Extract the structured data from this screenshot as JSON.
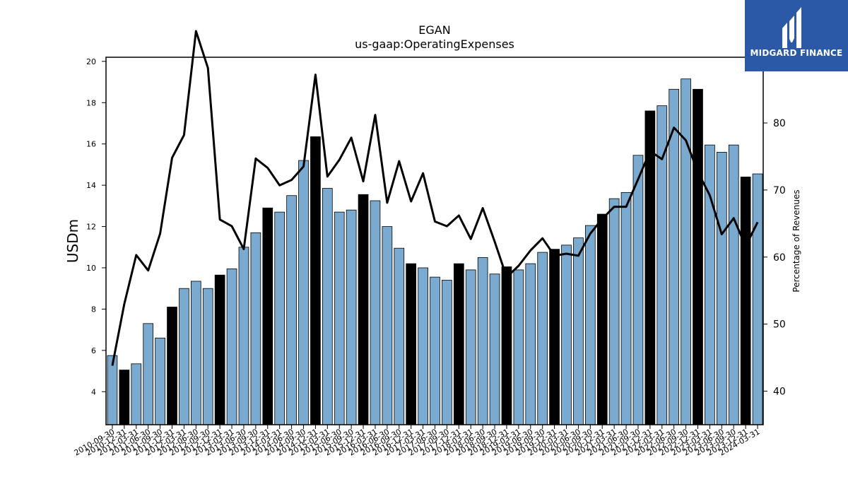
{
  "chart_data": {
    "type": "bar",
    "title": "EGAN",
    "subtitle": "us-gaap:OperatingExpenses",
    "ylabel": "USDm",
    "y2label": "Percentage of Revenues",
    "ylim": [
      2.4,
      20.2
    ],
    "y2lim": [
      35.0,
      89.8
    ],
    "yticks": [
      4,
      6,
      8,
      10,
      12,
      14,
      16,
      18,
      20
    ],
    "y2ticks": [
      40,
      50,
      60,
      70,
      80
    ],
    "categories": [
      "2010-09-30",
      "2010-12-31",
      "2011-03-31",
      "2011-06-30",
      "2011-09-30",
      "2011-12-31",
      "2012-03-31",
      "2012-06-30",
      "2012-09-30",
      "2012-12-31",
      "2013-03-31",
      "2013-06-30",
      "2013-09-30",
      "2013-12-31",
      "2014-03-31",
      "2014-06-30",
      "2014-09-30",
      "2014-12-31",
      "2015-03-31",
      "2015-06-30",
      "2015-09-30",
      "2015-12-31",
      "2016-03-31",
      "2016-06-30",
      "2016-09-30",
      "2016-12-31",
      "2017-03-31",
      "2017-06-30",
      "2017-09-30",
      "2017-12-31",
      "2018-03-31",
      "2018-06-30",
      "2018-09-30",
      "2018-12-31",
      "2019-03-31",
      "2019-06-30",
      "2019-09-30",
      "2019-12-31",
      "2020-03-31",
      "2020-06-30",
      "2020-09-30",
      "2020-12-31",
      "2021-03-31",
      "2021-06-30",
      "2021-09-30",
      "2021-12-31",
      "2022-03-31",
      "2022-06-30",
      "2022-09-30",
      "2022-12-31",
      "2023-03-31",
      "2023-06-30",
      "2023-09-30",
      "2023-12-31",
      "2024-03-31"
    ],
    "series": [
      {
        "kind": "bar",
        "values": [
          5.75,
          5.05,
          5.35,
          7.3,
          6.6,
          8.1,
          9.0,
          9.35,
          9.0,
          9.65,
          9.95,
          11.0,
          11.7,
          12.9,
          12.7,
          13.5,
          15.2,
          16.35,
          13.85,
          12.7,
          12.8,
          13.55,
          13.25,
          12.0,
          10.95,
          10.2,
          10.0,
          9.55,
          9.4,
          10.2,
          9.9,
          10.5,
          9.7,
          10.05,
          9.9,
          10.2,
          10.75,
          10.9,
          11.1,
          11.45,
          12.05,
          12.6,
          13.35,
          13.65,
          15.45,
          17.6,
          17.85,
          18.65,
          19.15,
          18.65,
          15.95,
          15.6,
          15.95,
          14.4,
          14.55
        ],
        "highlight_color": "#000000",
        "color": "#7aaad0"
      },
      {
        "kind": "line",
        "axis": "right",
        "values": [
          43.8,
          53.0,
          60.3,
          58.0,
          63.5,
          74.8,
          78.2,
          93.7,
          88.2,
          65.6,
          64.6,
          61.2,
          74.7,
          73.3,
          70.7,
          71.5,
          73.5,
          87.2,
          72.0,
          74.5,
          77.8,
          71.3,
          81.2,
          68.1,
          74.3,
          68.3,
          72.5,
          65.3,
          64.6,
          66.2,
          62.7,
          67.3,
          62.3,
          57.0,
          58.7,
          61.0,
          62.8,
          60.2,
          60.5,
          60.2,
          63.5,
          65.7,
          67.5,
          67.5,
          71.6,
          75.8,
          74.6,
          79.3,
          77.4,
          72.7,
          69.2,
          63.4,
          65.8,
          61.6,
          65.2
        ],
        "color": "#000000"
      }
    ],
    "grid": false
  },
  "logo": {
    "text": "MIDGARD FINANCE",
    "background": "#2b59a8"
  }
}
